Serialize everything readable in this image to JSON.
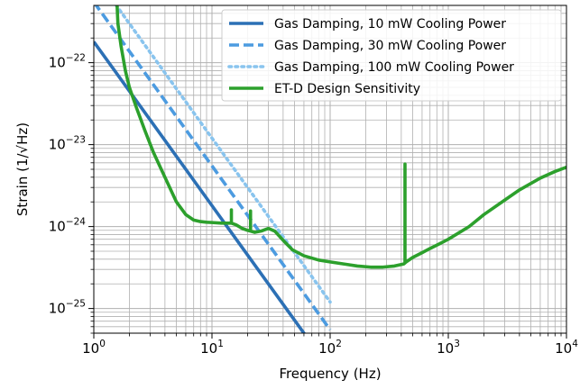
{
  "chart_data": {
    "type": "line",
    "title": "",
    "xlabel": "Frequency (Hz)",
    "ylabel": "Strain (1/√Hz)",
    "xscale": "log",
    "yscale": "log",
    "xlim": [
      1,
      10000
    ],
    "ylim": [
      5e-26,
      5e-22
    ],
    "grid": true,
    "grid_minor": true,
    "legend_position": "top-right",
    "x_ticks": [
      {
        "value": 1,
        "base": "10",
        "exp": "0"
      },
      {
        "value": 10,
        "base": "10",
        "exp": "1"
      },
      {
        "value": 100,
        "base": "10",
        "exp": "2"
      },
      {
        "value": 1000,
        "base": "10",
        "exp": "3"
      },
      {
        "value": 10000,
        "base": "10",
        "exp": "4"
      }
    ],
    "y_ticks": [
      {
        "value": 1e-25,
        "base": "10",
        "exp": "−25"
      },
      {
        "value": 1e-24,
        "base": "10",
        "exp": "−24"
      },
      {
        "value": 1e-23,
        "base": "10",
        "exp": "−23"
      },
      {
        "value": 1e-22,
        "base": "10",
        "exp": "−22"
      }
    ],
    "series": [
      {
        "name": "Gas Damping, 10 mW Cooling Power",
        "color": "#2c70b5",
        "style": "solid",
        "x": [
          1,
          10,
          100
        ],
        "y": [
          1.8e-22,
          1.8e-24,
          1.8e-26
        ]
      },
      {
        "name": "Gas Damping, 30 mW Cooling Power",
        "color": "#4c9be0",
        "style": "dashed",
        "x": [
          1,
          10,
          100
        ],
        "y": [
          5.5e-22,
          5.5e-24,
          5.5e-26
        ]
      },
      {
        "name": "Gas Damping, 100 mW Cooling Power",
        "color": "#89c4ee",
        "style": "dotted",
        "x": [
          1,
          10,
          100
        ],
        "y": [
          1.2e-21,
          1.2e-23,
          1.2e-25
        ]
      },
      {
        "name": "ET-D Design Sensitivity",
        "color": "#2ca02c",
        "style": "solid",
        "x": [
          1.55,
          1.6,
          1.7,
          1.85,
          2,
          2.3,
          2.7,
          3.2,
          4,
          5,
          6,
          7,
          8,
          9,
          10,
          12,
          14.6,
          14.6,
          14.6,
          16,
          18,
          20,
          21.2,
          21.2,
          21.2,
          23,
          26,
          30,
          34,
          40,
          48,
          60,
          80,
          100,
          130,
          170,
          220,
          280,
          350,
          420,
          430,
          430,
          430,
          440,
          500,
          600,
          700,
          850,
          1000,
          1500,
          2000,
          3000,
          4000,
          6000,
          8000,
          10000
        ],
        "y": [
          8e-22,
          3e-22,
          1.6e-22,
          8e-23,
          5e-23,
          2.8e-23,
          1.5e-23,
          8e-24,
          4e-24,
          2e-24,
          1.4e-24,
          1.2e-24,
          1.15e-24,
          1.13e-24,
          1.12e-24,
          1.1e-24,
          1.1e-24,
          1.6e-24,
          1.1e-24,
          1.05e-24,
          9.5e-25,
          9e-25,
          8.8e-25,
          1.55e-24,
          8.8e-25,
          8.5e-25,
          8.8e-25,
          9.5e-25,
          8.8e-25,
          6.8e-25,
          5.2e-25,
          4.4e-25,
          3.9e-25,
          3.7e-25,
          3.5e-25,
          3.3e-25,
          3.2e-25,
          3.2e-25,
          3.3e-25,
          3.5e-25,
          3.6e-25,
          5.8e-24,
          3.6e-25,
          3.7e-25,
          4.2e-25,
          4.8e-25,
          5.4e-25,
          6.2e-25,
          7e-25,
          1e-24,
          1.4e-24,
          2.1e-24,
          2.8e-24,
          3.9e-24,
          4.7e-24,
          5.3e-24
        ]
      }
    ]
  }
}
